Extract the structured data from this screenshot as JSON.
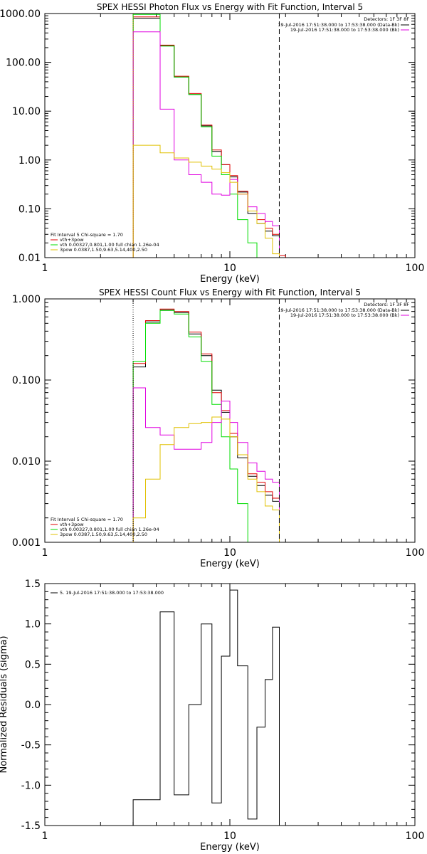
{
  "colors": {
    "black": "#000000",
    "red": "#e00000",
    "green": "#00dd00",
    "magenta": "#e000e0",
    "yellow": "#e0c000",
    "orange": "#e08000"
  },
  "chart_data": [
    {
      "type": "line",
      "title": "SPEX HESSI Photon Flux vs Energy with Fit Function, Interval 5",
      "xlabel": "Energy (keV)",
      "ylabel": "",
      "xscale": "log",
      "yscale": "log",
      "xlim": [
        1,
        100
      ],
      "ylim": [
        0.01,
        1000
      ],
      "x_ticks": [
        "1",
        "10",
        "100"
      ],
      "y_ticks": [
        "1000.00",
        "100.00",
        "10.00",
        "1.00",
        "0.10",
        "0.01"
      ],
      "y_tick_values": [
        1000,
        100,
        10,
        1,
        0.1,
        0.01
      ],
      "x_edges": [
        3,
        3.5,
        4.2,
        5,
        6,
        7,
        8,
        9,
        10,
        11,
        12.5,
        14,
        15.5,
        17,
        18.5,
        20
      ],
      "vlines": [
        {
          "x": 3,
          "style": "dotted",
          "color": "orange"
        },
        {
          "x": 18.5,
          "style": "dashed",
          "color": "black"
        }
      ],
      "legend_top_right": {
        "title": "Detectors: 1F 3F 8F",
        "entries": [
          {
            "text": "19-Jul-2016 17:51:38.000 to 17:53:38.000 (Data-Bk)",
            "color": "black"
          },
          {
            "text": "19-Jul-2016 17:51:38.000 to 17:53:38.000 (Bk)",
            "color": "magenta"
          }
        ]
      },
      "legend_bottom_left": {
        "header": "Fit Interval 5    Chi-square = 1.70",
        "entries": [
          {
            "text": "vth+3pow",
            "color": "red"
          },
          {
            "text": "vth 0.00327,0.801,1.00   full chian 1.26e-04",
            "color": "green"
          },
          {
            "text": "3pow 0.0387,1.50,9.63,5.14,400,2.50",
            "color": "yellow"
          }
        ]
      },
      "series": [
        {
          "color": "black",
          "values": [
            800,
            800,
            220,
            50,
            22,
            5,
            1.5,
            0.8,
            0.45,
            0.22,
            0.08,
            0.05,
            0.035,
            0.028,
            0.01
          ]
        },
        {
          "color": "red",
          "values": [
            850,
            850,
            225,
            52,
            23,
            5.2,
            1.6,
            0.8,
            0.48,
            0.23,
            0.09,
            0.06,
            0.04,
            0.03,
            0.011
          ]
        },
        {
          "color": "green",
          "values": [
            960,
            960,
            215,
            50,
            22,
            4.8,
            1.2,
            0.5,
            0.2,
            0.06,
            0.02,
            0.009,
            0.009,
            0.009,
            0.009
          ]
        },
        {
          "color": "magenta",
          "values": [
            420,
            420,
            11,
            1.0,
            0.5,
            0.35,
            0.2,
            0.19,
            0.4,
            0.2,
            0.11,
            0.08,
            0.055,
            0.045,
            0.01
          ]
        },
        {
          "color": "yellow",
          "values": [
            2,
            2,
            1.4,
            1.1,
            0.9,
            0.75,
            0.65,
            0.55,
            0.35,
            0.2,
            0.09,
            0.05,
            0.025,
            0.012,
            0.009
          ]
        }
      ]
    },
    {
      "type": "line",
      "title": "SPEX HESSI Count Flux vs Energy with Fit Function, Interval 5",
      "xlabel": "Energy (keV)",
      "ylabel": "",
      "xscale": "log",
      "yscale": "log",
      "xlim": [
        1,
        100
      ],
      "ylim": [
        0.001,
        1
      ],
      "x_ticks": [
        "1",
        "10",
        "100"
      ],
      "y_ticks": [
        "1.000",
        "0.100",
        "0.010",
        "0.001"
      ],
      "y_tick_values": [
        1,
        0.1,
        0.01,
        0.001
      ],
      "x_edges": [
        3,
        3.5,
        4.2,
        5,
        6,
        7,
        8,
        9,
        10,
        11,
        12.5,
        14,
        15.5,
        17,
        18.5,
        20
      ],
      "vlines": [
        {
          "x": 3,
          "style": "dotted",
          "color": "black"
        },
        {
          "x": 18.5,
          "style": "dashed",
          "color": "black"
        }
      ],
      "legend_top_right": {
        "title": "Detectors: 1F 3F 8F",
        "entries": [
          {
            "text": "19-Jul-2016 17:51:38.000 to 17:53:38.000 (Data-Bk)",
            "color": "black"
          },
          {
            "text": "19-Jul-2016 17:51:38.000 to 17:53:38.000 (Bk)",
            "color": "magenta"
          }
        ]
      },
      "legend_bottom_left": {
        "header": "Fit Interval 5    Chi-square = 1.70",
        "entries": [
          {
            "text": "vth+3pow",
            "color": "red"
          },
          {
            "text": "vth 0.00327,0.801,1.00   full chian 1.26e-04",
            "color": "green"
          },
          {
            "text": "3pow 0.0387,1.50,9.63,5.14,400,2.50",
            "color": "yellow"
          }
        ]
      },
      "series": [
        {
          "color": "black",
          "values": [
            0.145,
            0.52,
            0.73,
            0.68,
            0.37,
            0.2,
            0.075,
            0.04,
            0.02,
            0.011,
            0.0065,
            0.005,
            0.0038,
            0.0032,
            0.001
          ]
        },
        {
          "color": "red",
          "values": [
            0.16,
            0.54,
            0.75,
            0.7,
            0.39,
            0.21,
            0.07,
            0.042,
            0.022,
            0.012,
            0.007,
            0.0055,
            0.0042,
            0.0035,
            0.001
          ]
        },
        {
          "color": "green",
          "values": [
            0.17,
            0.5,
            0.72,
            0.65,
            0.34,
            0.17,
            0.05,
            0.02,
            0.008,
            0.003,
            0.0009,
            0.0009,
            0.0009,
            0.0009,
            0.0009
          ]
        },
        {
          "color": "magenta",
          "values": [
            0.08,
            0.026,
            0.021,
            0.014,
            0.014,
            0.017,
            0.03,
            0.055,
            0.03,
            0.017,
            0.0095,
            0.0075,
            0.006,
            0.0055,
            0.001
          ]
        },
        {
          "color": "yellow",
          "values": [
            0.002,
            0.006,
            0.016,
            0.026,
            0.029,
            0.03,
            0.035,
            0.033,
            0.02,
            0.012,
            0.006,
            0.0042,
            0.0028,
            0.0025,
            0.001
          ]
        }
      ]
    },
    {
      "type": "line",
      "title": "",
      "xlabel": "Energy (keV)",
      "ylabel": "Normalized Residuals (sigma)",
      "xscale": "log",
      "yscale": "linear",
      "xlim": [
        1,
        100
      ],
      "ylim": [
        -1.5,
        1.5
      ],
      "x_ticks": [
        "1",
        "10",
        "100"
      ],
      "y_ticks": [
        "1.5",
        "1.0",
        "0.5",
        "0.0",
        "-0.5",
        "-1.0",
        "-1.5"
      ],
      "y_tick_values": [
        1.5,
        1.0,
        0.5,
        0.0,
        -0.5,
        -1.0,
        -1.5
      ],
      "x_edges": [
        3,
        3.5,
        4.2,
        5,
        6,
        7,
        8,
        9,
        10,
        11,
        12.5,
        14,
        15.5,
        17,
        18.5
      ],
      "legend_top_left": {
        "entries": [
          {
            "text": "5. 19-Jul-2016 17:51:38.000 to 17:53:38.000",
            "color": "black"
          }
        ]
      },
      "series": [
        {
          "color": "black",
          "values": [
            -1.18,
            -1.18,
            1.15,
            -1.12,
            0.0,
            1.0,
            -1.22,
            0.6,
            1.42,
            0.48,
            -1.42,
            -0.28,
            0.31,
            0.96
          ]
        }
      ]
    }
  ]
}
